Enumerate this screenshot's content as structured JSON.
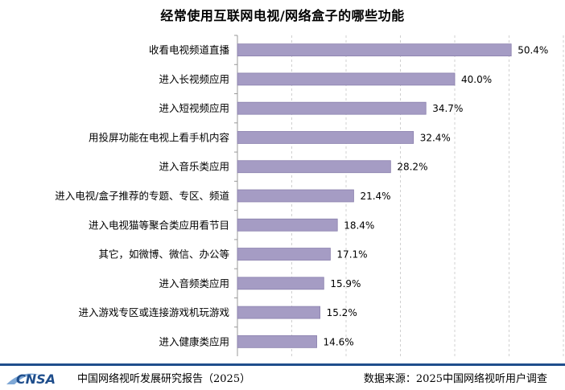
{
  "chart_data": {
    "type": "bar",
    "orientation": "horizontal",
    "title": "经常使用互联网电视/网络盒子的哪些功能",
    "categories": [
      "收看电视频道直播",
      "进入长视频应用",
      "进入短视频应用",
      "用投屏功能在电视上看手机内容",
      "进入音乐类应用",
      "进入电视/盒子推荐的专题、专区、频道",
      "进入电视猫等聚合类应用看节目",
      "其它，如微博、微信、办公等",
      "进入音频类应用",
      "进入游戏专区或连接游戏机玩游戏",
      "进入健康类应用"
    ],
    "values": [
      50.4,
      40.0,
      34.7,
      32.4,
      28.2,
      21.4,
      18.4,
      17.1,
      15.9,
      15.2,
      14.6
    ],
    "value_labels": [
      "50.4%",
      "40.0%",
      "34.7%",
      "32.4%",
      "28.2%",
      "21.4%",
      "18.4%",
      "17.1%",
      "15.9%",
      "15.2%",
      "14.6%"
    ],
    "xlim": [
      0,
      60
    ],
    "grid": true,
    "bar_color": "#a59cc4",
    "bar_border": "#8a80ad",
    "grid_color": "#d0d0d0"
  },
  "footer": {
    "logo_text": "CNSA",
    "report_name": "中国网络视听发展研究报告（2025）",
    "source": "数据来源：2025中国网络视听用户调查",
    "line_color": "#1f4e8c",
    "logo_color": "#1f4e8c"
  }
}
